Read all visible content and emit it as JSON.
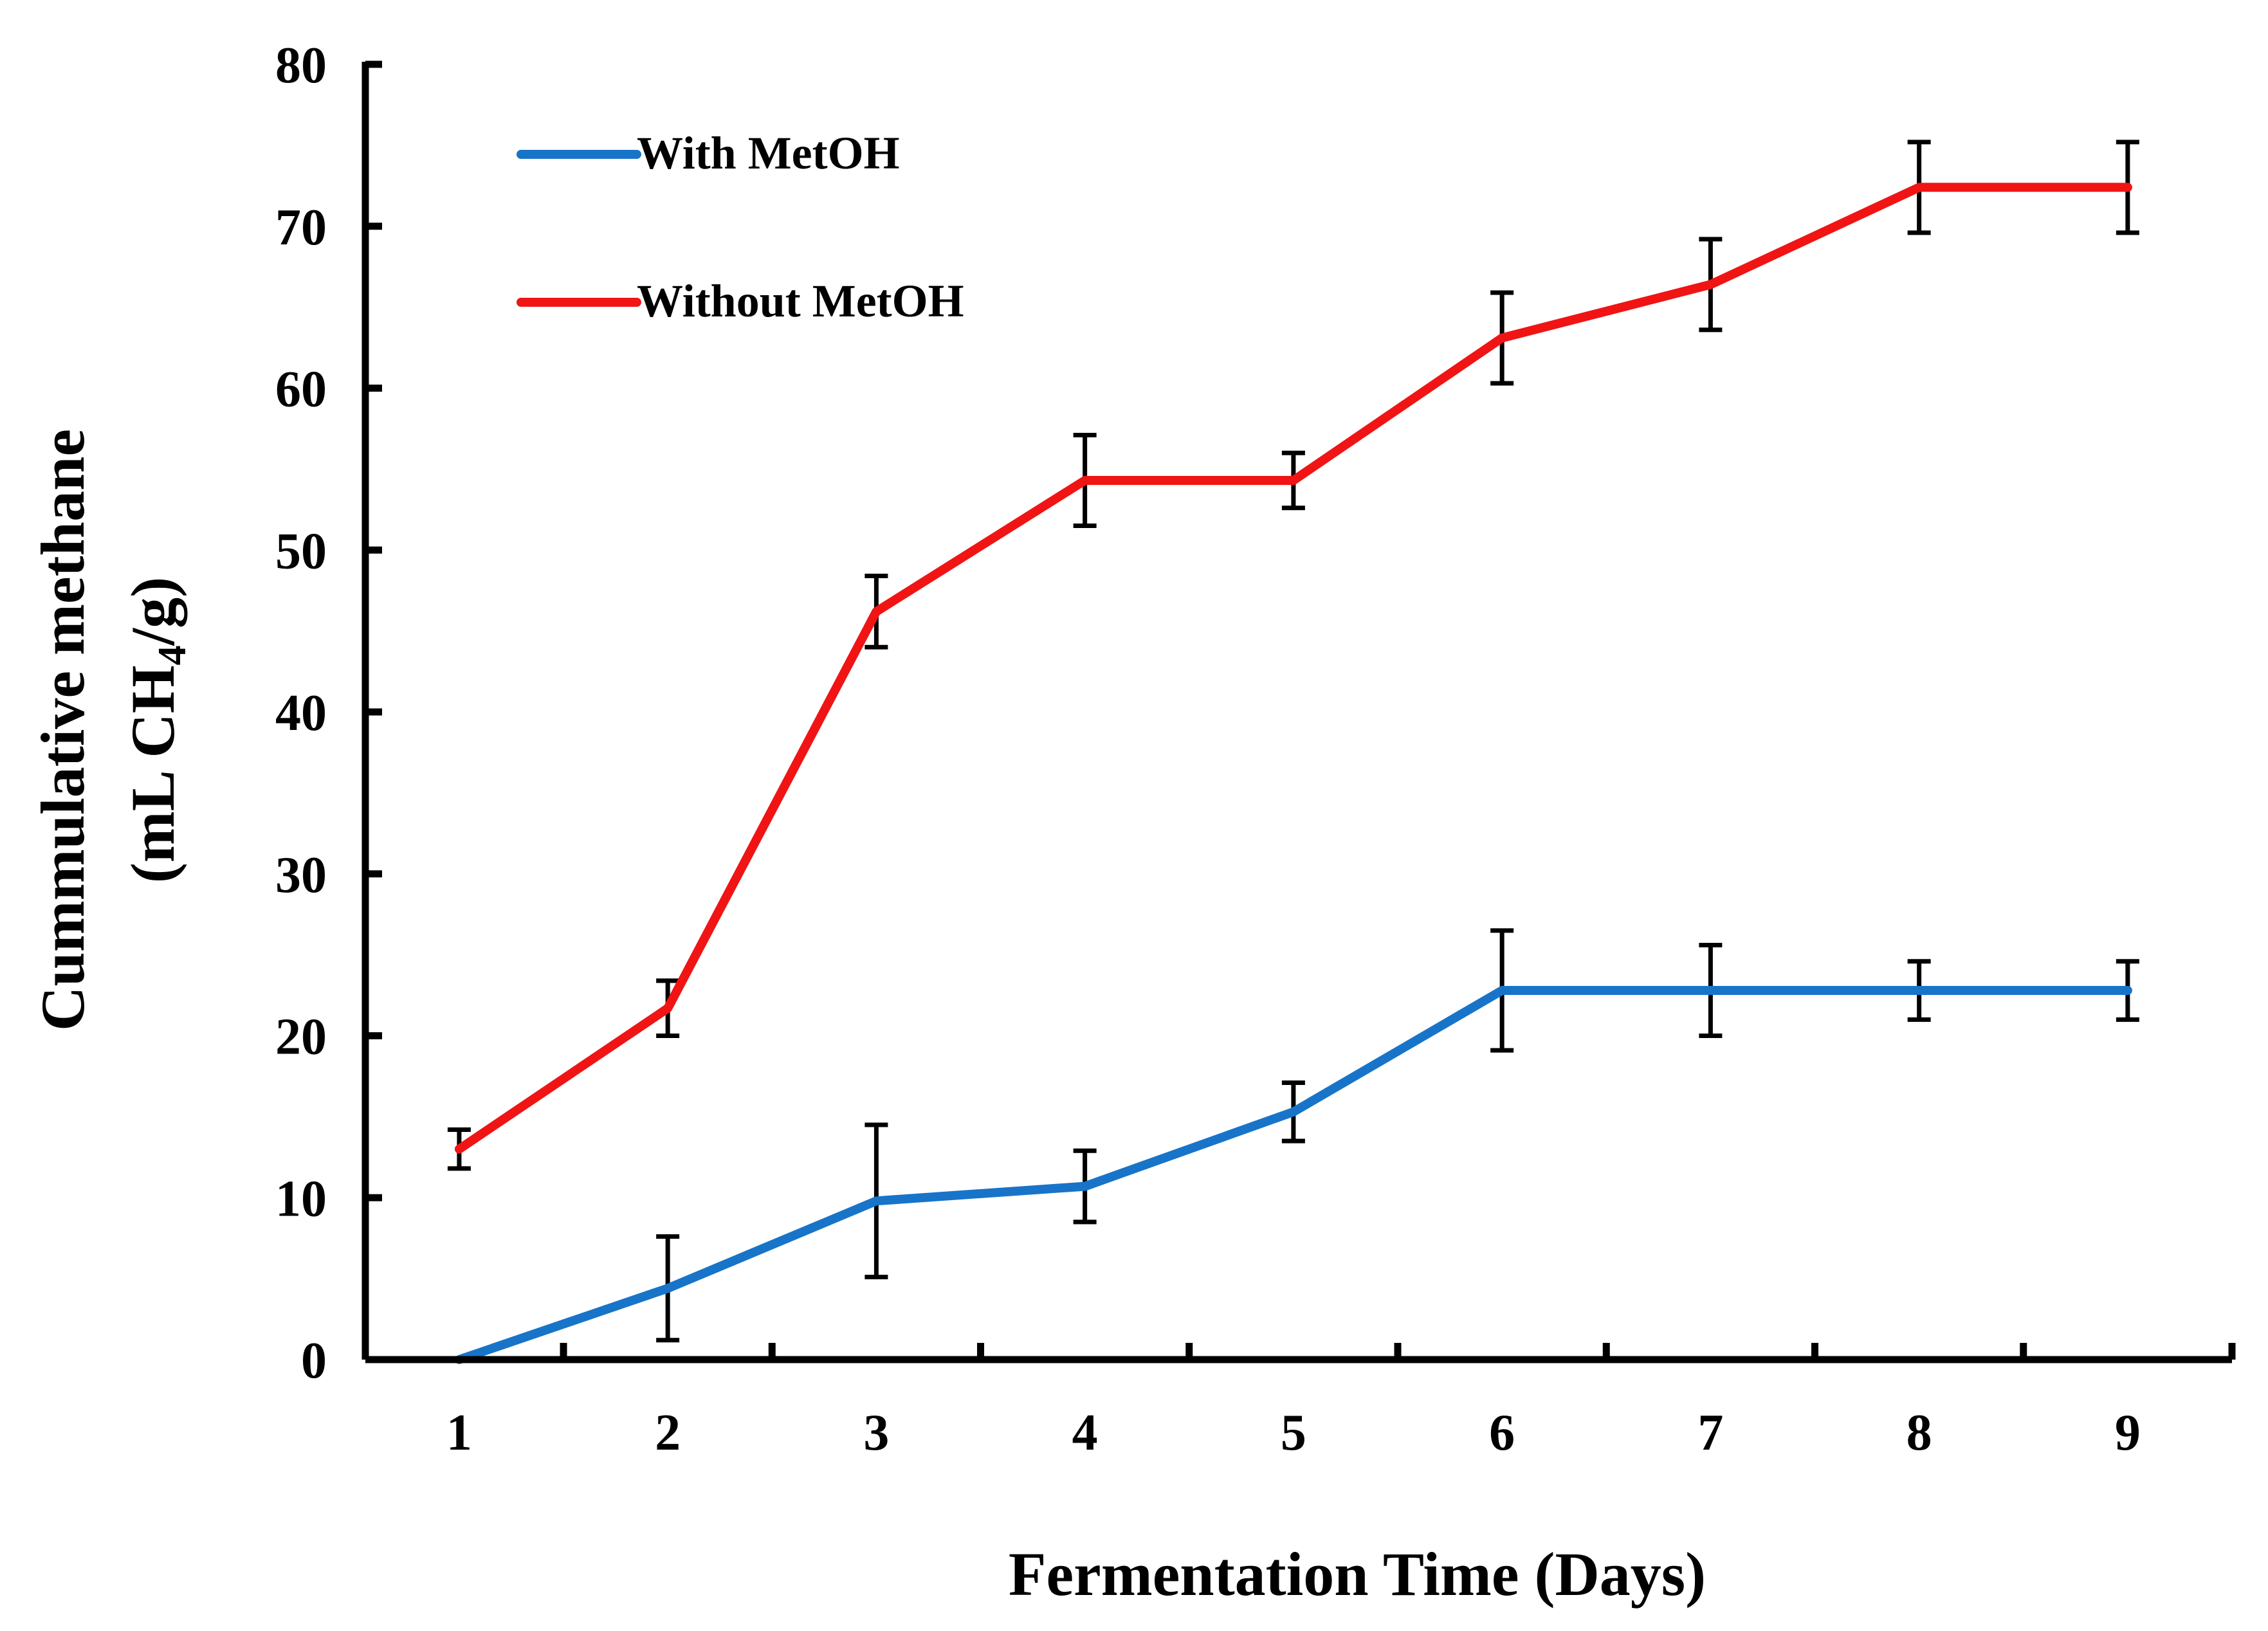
{
  "chart_data": {
    "type": "line",
    "title": "",
    "xlabel": "Fermentation Time (Days)",
    "ylabel_line1": "Cummulative methane",
    "ylabel_line2_prefix": "(mL CH",
    "ylabel_subscript": "4",
    "ylabel_line2_suffix": "/g)",
    "x": [
      1,
      2,
      3,
      4,
      5,
      6,
      7,
      8,
      9
    ],
    "x_tick_labels": [
      "1",
      "2",
      "3",
      "4",
      "5",
      "6",
      "7",
      "8",
      "9"
    ],
    "y_tick_labels": [
      "0",
      "10",
      "20",
      "30",
      "40",
      "50",
      "60",
      "70",
      "80"
    ],
    "ylim": [
      0,
      80
    ],
    "xlim": [
      0.55,
      9.5
    ],
    "grid": false,
    "legend_position": "top-left",
    "series": [
      {
        "name": "With MetOH",
        "color": "#1874C8",
        "values": [
          0,
          4.4,
          9.8,
          10.7,
          15.3,
          22.8,
          22.8,
          22.8,
          22.8
        ],
        "errors": [
          0,
          3.2,
          4.7,
          2.2,
          1.8,
          3.7,
          2.8,
          1.8,
          1.8
        ]
      },
      {
        "name": "Without MetOH",
        "color": "#F01414",
        "values": [
          13.0,
          21.7,
          46.2,
          54.3,
          54.3,
          63.1,
          66.4,
          72.4,
          72.4
        ],
        "errors": [
          1.2,
          1.7,
          2.2,
          2.8,
          1.7,
          2.8,
          2.8,
          2.8,
          2.8
        ]
      }
    ]
  }
}
